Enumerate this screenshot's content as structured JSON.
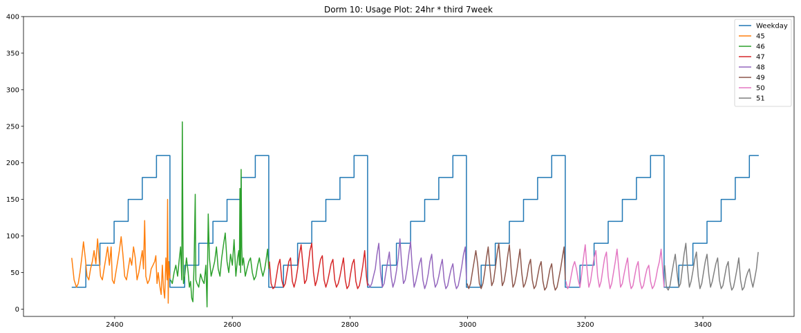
{
  "chart_data": {
    "type": "line",
    "title": "Dorm 10: Usage Plot: 24hr * third 7week",
    "xlabel": "",
    "ylabel": "",
    "xlim": [
      2245,
      3555
    ],
    "ylim": [
      -10,
      400
    ],
    "xticks": [
      2400,
      2600,
      2800,
      3000,
      3200,
      3400
    ],
    "yticks": [
      0,
      50,
      100,
      150,
      200,
      250,
      300,
      350,
      400
    ],
    "grid": false,
    "legend_position": "top-right",
    "series": [
      {
        "name": "Weekday",
        "color": "#1f77b4",
        "x": [
          2327,
          2351,
          2351,
          2375,
          2375,
          2399,
          2399,
          2423,
          2423,
          2447,
          2447,
          2471,
          2471,
          2494,
          2494,
          2495,
          2495,
          2519,
          2519,
          2543,
          2543,
          2567,
          2567,
          2591,
          2591,
          2615,
          2615,
          2639,
          2639,
          2662,
          2662,
          2663,
          2663,
          2687,
          2687,
          2711,
          2711,
          2735,
          2735,
          2759,
          2759,
          2783,
          2783,
          2807,
          2807,
          2830,
          2830,
          2831,
          2831,
          2855,
          2855,
          2879,
          2879,
          2903,
          2903,
          2927,
          2927,
          2951,
          2951,
          2975,
          2975,
          2998,
          2998,
          2999,
          2999,
          3023,
          3023,
          3047,
          3047,
          3071,
          3071,
          3095,
          3095,
          3119,
          3119,
          3143,
          3143,
          3166,
          3166,
          3167,
          3167,
          3191,
          3191,
          3215,
          3215,
          3239,
          3239,
          3263,
          3263,
          3287,
          3287,
          3311,
          3311,
          3334,
          3334,
          3335,
          3335,
          3359,
          3359,
          3383,
          3383,
          3407,
          3407,
          3431,
          3431,
          3455,
          3455,
          3479,
          3479,
          3495
        ],
        "y": [
          30,
          30,
          60,
          60,
          90,
          90,
          120,
          120,
          150,
          150,
          180,
          180,
          210,
          210,
          30,
          30,
          30,
          30,
          60,
          60,
          90,
          90,
          120,
          120,
          150,
          150,
          180,
          180,
          210,
          210,
          30,
          30,
          30,
          30,
          60,
          60,
          90,
          90,
          120,
          120,
          150,
          150,
          180,
          180,
          210,
          210,
          30,
          30,
          30,
          30,
          60,
          60,
          90,
          90,
          120,
          120,
          150,
          150,
          180,
          180,
          210,
          210,
          30,
          30,
          30,
          30,
          60,
          60,
          90,
          90,
          120,
          120,
          150,
          150,
          180,
          180,
          210,
          210,
          30,
          30,
          30,
          30,
          60,
          60,
          90,
          90,
          120,
          120,
          150,
          150,
          180,
          180,
          210,
          210,
          30,
          30,
          30,
          30,
          60,
          60,
          90,
          90,
          120,
          120,
          150,
          150,
          180,
          180,
          210,
          210
        ]
      },
      {
        "name": "45",
        "color": "#ff7f0e",
        "x": [
          2327,
          2331,
          2335,
          2338,
          2341,
          2344,
          2347,
          2350,
          2353,
          2356,
          2359,
          2362,
          2365,
          2368,
          2371,
          2373,
          2376,
          2379,
          2382,
          2385,
          2388,
          2391,
          2394,
          2396,
          2399,
          2402,
          2405,
          2408,
          2411,
          2414,
          2417,
          2420,
          2423,
          2426,
          2429,
          2432,
          2435,
          2438,
          2441,
          2444,
          2447,
          2449,
          2451,
          2453,
          2456,
          2459,
          2462,
          2465,
          2468,
          2470,
          2472,
          2474,
          2477,
          2479,
          2481,
          2483,
          2485,
          2487,
          2489,
          2490,
          2491,
          2492,
          2494
        ],
        "y": [
          70,
          40,
          30,
          35,
          50,
          70,
          92,
          70,
          45,
          40,
          55,
          65,
          80,
          62,
          96,
          75,
          45,
          40,
          55,
          70,
          85,
          60,
          85,
          40,
          35,
          50,
          65,
          80,
          99,
          75,
          45,
          40,
          55,
          70,
          60,
          85,
          70,
          40,
          50,
          65,
          80,
          55,
          121,
          45,
          35,
          40,
          55,
          60,
          65,
          73,
          35,
          50,
          30,
          20,
          60,
          28,
          15,
          70,
          40,
          150,
          8,
          65,
          42
        ]
      },
      {
        "name": "46",
        "color": "#2ca02c",
        "x": [
          2495,
          2498,
          2501,
          2504,
          2507,
          2510,
          2512,
          2514,
          2515,
          2516,
          2517,
          2519,
          2522,
          2525,
          2527,
          2529,
          2531,
          2533,
          2535,
          2537,
          2538,
          2540,
          2543,
          2546,
          2549,
          2552,
          2555,
          2557,
          2559,
          2561,
          2564,
          2567,
          2570,
          2573,
          2576,
          2579,
          2582,
          2585,
          2588,
          2591,
          2594,
          2597,
          2600,
          2603,
          2606,
          2609,
          2611,
          2612,
          2613,
          2614,
          2615,
          2616,
          2617,
          2619,
          2622,
          2625,
          2628,
          2631,
          2634,
          2637,
          2640,
          2643,
          2646,
          2649,
          2652,
          2655,
          2657,
          2660,
          2662
        ],
        "y": [
          40,
          35,
          50,
          60,
          45,
          70,
          85,
          40,
          256,
          100,
          35,
          45,
          70,
          50,
          30,
          38,
          15,
          10,
          60,
          157,
          40,
          35,
          30,
          48,
          40,
          35,
          60,
          3,
          130,
          70,
          45,
          55,
          65,
          85,
          55,
          45,
          70,
          88,
          104,
          65,
          50,
          75,
          60,
          95,
          45,
          70,
          80,
          60,
          165,
          50,
          191,
          85,
          60,
          70,
          45,
          55,
          65,
          70,
          50,
          40,
          45,
          60,
          70,
          55,
          45,
          55,
          65,
          82,
          55
        ]
      },
      {
        "name": "47",
        "color": "#d62728",
        "x": [
          2663,
          2666,
          2669,
          2672,
          2675,
          2678,
          2681,
          2684,
          2687,
          2690,
          2693,
          2696,
          2699,
          2702,
          2705,
          2708,
          2711,
          2714,
          2717,
          2720,
          2723,
          2726,
          2729,
          2732,
          2735,
          2738,
          2741,
          2744,
          2747,
          2750,
          2753,
          2756,
          2759,
          2762,
          2765,
          2768,
          2771,
          2774,
          2777,
          2780,
          2783,
          2786,
          2789,
          2792,
          2795,
          2798,
          2801,
          2804,
          2807,
          2810,
          2813,
          2816,
          2819,
          2822,
          2825,
          2828,
          2830
        ],
        "y": [
          65,
          35,
          28,
          30,
          45,
          60,
          68,
          40,
          30,
          35,
          50,
          65,
          70,
          38,
          30,
          40,
          55,
          75,
          88,
          60,
          35,
          40,
          60,
          80,
          90,
          50,
          32,
          40,
          55,
          68,
          73,
          40,
          30,
          38,
          50,
          62,
          68,
          40,
          30,
          35,
          45,
          58,
          70,
          40,
          28,
          32,
          48,
          62,
          68,
          38,
          28,
          32,
          45,
          60,
          80,
          45,
          32
        ]
      },
      {
        "name": "48",
        "color": "#9467bd",
        "x": [
          2831,
          2834,
          2837,
          2840,
          2843,
          2846,
          2849,
          2852,
          2855,
          2858,
          2861,
          2864,
          2867,
          2870,
          2873,
          2876,
          2879,
          2882,
          2885,
          2888,
          2891,
          2894,
          2897,
          2900,
          2903,
          2906,
          2909,
          2912,
          2915,
          2918,
          2921,
          2924,
          2927,
          2930,
          2933,
          2936,
          2939,
          2942,
          2945,
          2948,
          2951,
          2954,
          2957,
          2960,
          2963,
          2966,
          2969,
          2972,
          2975,
          2978,
          2981,
          2984,
          2987,
          2990,
          2993,
          2996,
          2998
        ],
        "y": [
          35,
          30,
          35,
          45,
          55,
          75,
          90,
          50,
          30,
          35,
          50,
          65,
          78,
          45,
          30,
          38,
          52,
          70,
          96,
          60,
          35,
          40,
          55,
          75,
          92,
          55,
          30,
          38,
          50,
          62,
          70,
          40,
          28,
          35,
          48,
          65,
          75,
          45,
          30,
          35,
          45,
          58,
          68,
          40,
          28,
          32,
          44,
          55,
          62,
          38,
          28,
          32,
          44,
          58,
          75,
          85,
          40
        ]
      },
      {
        "name": "49",
        "color": "#8c564b",
        "x": [
          2999,
          3002,
          3005,
          3008,
          3011,
          3014,
          3017,
          3020,
          3023,
          3026,
          3029,
          3032,
          3035,
          3038,
          3041,
          3044,
          3047,
          3050,
          3053,
          3056,
          3059,
          3062,
          3065,
          3068,
          3071,
          3074,
          3077,
          3080,
          3083,
          3086,
          3089,
          3092,
          3095,
          3098,
          3101,
          3104,
          3107,
          3110,
          3113,
          3116,
          3119,
          3122,
          3125,
          3128,
          3131,
          3134,
          3137,
          3140,
          3143,
          3146,
          3149,
          3152,
          3155,
          3158,
          3161,
          3164,
          3166
        ],
        "y": [
          35,
          28,
          35,
          50,
          65,
          80,
          62,
          35,
          28,
          35,
          50,
          70,
          85,
          55,
          32,
          38,
          55,
          75,
          90,
          60,
          32,
          38,
          52,
          72,
          88,
          55,
          30,
          35,
          48,
          65,
          82,
          50,
          30,
          35,
          45,
          60,
          68,
          40,
          28,
          32,
          45,
          58,
          65,
          38,
          26,
          30,
          42,
          55,
          62,
          36,
          26,
          30,
          42,
          55,
          70,
          85,
          40
        ]
      },
      {
        "name": "50",
        "color": "#e377c2",
        "x": [
          3167,
          3170,
          3173,
          3176,
          3179,
          3182,
          3185,
          3188,
          3191,
          3194,
          3197,
          3200,
          3203,
          3206,
          3209,
          3212,
          3215,
          3218,
          3221,
          3224,
          3227,
          3230,
          3233,
          3236,
          3239,
          3242,
          3245,
          3248,
          3251,
          3254,
          3257,
          3260,
          3263,
          3266,
          3269,
          3272,
          3275,
          3278,
          3281,
          3284,
          3287,
          3290,
          3293,
          3296,
          3299,
          3302,
          3305,
          3308,
          3311,
          3314,
          3317,
          3320,
          3323,
          3326,
          3329,
          3332,
          3334
        ],
        "y": [
          38,
          28,
          32,
          45,
          58,
          65,
          55,
          40,
          30,
          48,
          70,
          88,
          55,
          30,
          38,
          55,
          70,
          80,
          45,
          30,
          38,
          55,
          70,
          78,
          45,
          28,
          35,
          50,
          65,
          82,
          55,
          30,
          35,
          48,
          60,
          70,
          40,
          28,
          32,
          45,
          58,
          65,
          38,
          28,
          32,
          45,
          55,
          60,
          38,
          28,
          32,
          42,
          55,
          65,
          82,
          50,
          30
        ]
      },
      {
        "name": "51",
        "color": "#7f7f7f",
        "x": [
          3335,
          3338,
          3341,
          3344,
          3347,
          3350,
          3353,
          3356,
          3359,
          3362,
          3365,
          3368,
          3371,
          3374,
          3377,
          3380,
          3383,
          3386,
          3389,
          3392,
          3395,
          3398,
          3401,
          3404,
          3407,
          3410,
          3413,
          3416,
          3419,
          3422,
          3425,
          3428,
          3431,
          3434,
          3437,
          3440,
          3443,
          3446,
          3449,
          3452,
          3455,
          3458,
          3461,
          3464,
          3467,
          3470,
          3473,
          3476,
          3479,
          3482,
          3485,
          3488,
          3491,
          3494
        ],
        "y": [
          60,
          30,
          26,
          32,
          48,
          62,
          75,
          50,
          30,
          35,
          55,
          75,
          90,
          55,
          30,
          38,
          52,
          68,
          78,
          45,
          28,
          35,
          50,
          65,
          75,
          48,
          30,
          38,
          50,
          62,
          70,
          40,
          28,
          32,
          45,
          58,
          65,
          38,
          26,
          30,
          42,
          55,
          70,
          40,
          26,
          30,
          42,
          50,
          55,
          40,
          30,
          42,
          55,
          78
        ]
      }
    ]
  }
}
